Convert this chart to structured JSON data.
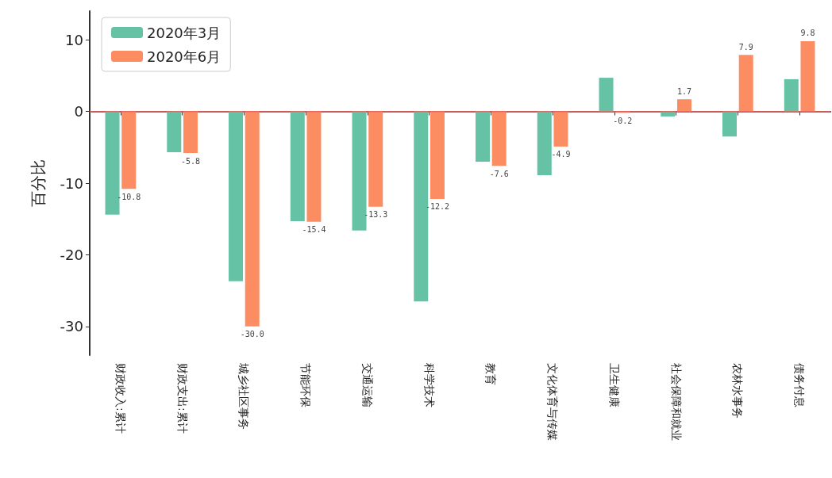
{
  "chart_data": {
    "type": "bar",
    "ylabel": "百分比",
    "categories": [
      "财政收入:累计",
      "财政支出:累计",
      "城乡社区事务",
      "节能环保",
      "交通运输",
      "科学技术",
      "教育",
      "文化体育与传媒",
      "卫生健康",
      "社会保障和就业",
      "农林水事务",
      "债务付息"
    ],
    "series": [
      {
        "name": "2020年3月",
        "color": "#66c2a5",
        "values": [
          -14.4,
          -5.7,
          -23.7,
          -15.3,
          -16.6,
          -26.5,
          -7.0,
          -8.9,
          4.7,
          -0.7,
          -3.5,
          4.5
        ]
      },
      {
        "name": "2020年6月",
        "color": "#fc8d62",
        "values": [
          -10.8,
          -5.8,
          -30.0,
          -15.4,
          -13.3,
          -12.2,
          -7.6,
          -4.9,
          -0.2,
          1.7,
          7.9,
          9.8
        ],
        "value_labels": [
          "-10.8",
          "-5.8",
          "-30.0",
          "-15.4",
          "-13.3",
          "-12.2",
          "-7.6",
          "-4.9",
          "-0.2",
          "1.7",
          "7.9",
          "9.8"
        ]
      }
    ],
    "ylim": [
      -34,
      14
    ],
    "yticks": [
      -30,
      -20,
      -10,
      0,
      10
    ],
    "ref_lines": [
      {
        "axis": "y",
        "value": 0,
        "color": "#ff6b6b"
      }
    ],
    "legend": "top left",
    "grid": false
  }
}
